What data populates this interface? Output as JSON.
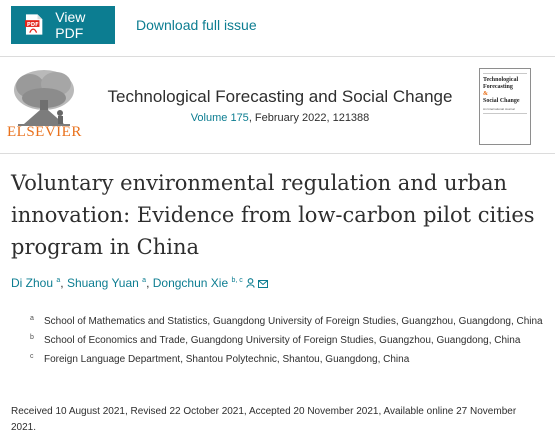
{
  "toolbar": {
    "view_pdf_label": "View PDF",
    "pdf_icon_text": "PDF",
    "download_issue_label": "Download full issue"
  },
  "journal": {
    "publisher": "ELSEVIER",
    "title": "Technological Forecasting and Social Change",
    "volume_link": "Volume 175",
    "issue_details": ", February 2022, 121388",
    "cover": {
      "title_line1": "Technological",
      "title_line2": "Forecasting",
      "title_line3": "&",
      "title_line4": "Social Change",
      "subtitle": "An International Journal"
    }
  },
  "article": {
    "title": "Voluntary environmental regulation and urban innovation: Evidence from low-carbon pilot cities program in China",
    "authors": [
      {
        "name": "Di Zhou",
        "sup": "a"
      },
      {
        "name": "Shuang Yuan",
        "sup": "a"
      },
      {
        "name": "Dongchun Xie",
        "sup": "b, c"
      }
    ],
    "affiliations": [
      {
        "mark": "a",
        "text": "School of Mathematics and Statistics, Guangdong University of Foreign Studies, Guangzhou, Guangdong, China"
      },
      {
        "mark": "b",
        "text": "School of Economics and Trade, Guangdong University of Foreign Studies, Guangzhou, Guangdong, China"
      },
      {
        "mark": "c",
        "text": "Foreign Language Department, Shantou Polytechnic, Shantou, Guangdong, China"
      }
    ],
    "history": "Received 10 August 2021, Revised 22 October 2021, Accepted 20 November 2021, Available online 27 November 2021."
  },
  "colors": {
    "accent": "#0c7d91",
    "elsevier_orange": "#e9711c",
    "text": "#2e2e2e"
  },
  "icons": [
    "pdf-file-icon",
    "person-icon",
    "envelope-icon",
    "elsevier-tree-logo"
  ]
}
